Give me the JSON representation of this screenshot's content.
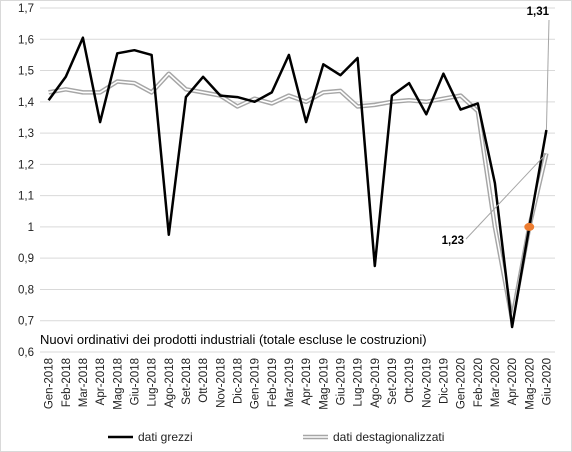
{
  "chart_data": {
    "type": "line",
    "title": "Nuovi ordinativi dei prodotti  industriali (totale escluse le costruzioni)",
    "xlabel": "",
    "ylabel": "",
    "ylim": [
      0.6,
      1.7
    ],
    "yticks": [
      "0,6",
      "0,7",
      "0,8",
      "0,9",
      "1",
      "1,1",
      "1,2",
      "1,3",
      "1,4",
      "1,5",
      "1,6",
      "1,7"
    ],
    "grid": "horizontal",
    "legend_position": "bottom",
    "categories": [
      "Gen-2018",
      "Feb-2018",
      "Mar-2018",
      "Apr-2018",
      "Mag-2018",
      "Giu-2018",
      "Lug-2018",
      "Ago-2018",
      "Set-2018",
      "Ott-2018",
      "Nov-2018",
      "Dic-2018",
      "Gen-2019",
      "Feb-2019",
      "Mar-2019",
      "Apr-2019",
      "Mag-2019",
      "Giu-2019",
      "Lug-2019",
      "Ago-2019",
      "Set-2019",
      "Ott-2019",
      "Nov-2019",
      "Dic-2019",
      "Gen-2020",
      "Feb-2020",
      "Mar-2020",
      "Apr-2020",
      "Mag-2020",
      "Giu-2020"
    ],
    "series": [
      {
        "name": "dati grezzi",
        "color": "#000000",
        "style": "solid",
        "values": [
          1.405,
          1.48,
          1.605,
          1.335,
          1.555,
          1.565,
          1.55,
          0.975,
          1.415,
          1.48,
          1.42,
          1.415,
          1.4,
          1.43,
          1.55,
          1.335,
          1.52,
          1.485,
          1.54,
          0.875,
          1.42,
          1.46,
          1.36,
          1.49,
          1.375,
          1.395,
          1.14,
          0.68,
          1.0,
          1.31
        ]
      },
      {
        "name": "dati destagionalizzati",
        "color": "#a6a6a6",
        "style": "double",
        "values": [
          1.43,
          1.44,
          1.43,
          1.43,
          1.465,
          1.46,
          1.43,
          1.49,
          1.44,
          1.43,
          1.42,
          1.385,
          1.41,
          1.395,
          1.42,
          1.4,
          1.43,
          1.435,
          1.385,
          1.39,
          1.4,
          1.405,
          1.4,
          1.41,
          1.42,
          1.37,
          1.0,
          0.705,
          1.0,
          1.235
        ]
      }
    ],
    "marker": {
      "category": "Mag-2020",
      "value": 1.0,
      "color": "#ed7d31"
    },
    "annotations": [
      {
        "text": "1,31",
        "series": 0,
        "category": "Giu-2020"
      },
      {
        "text": "1,23",
        "series": 1,
        "category": "Giu-2020"
      }
    ]
  }
}
